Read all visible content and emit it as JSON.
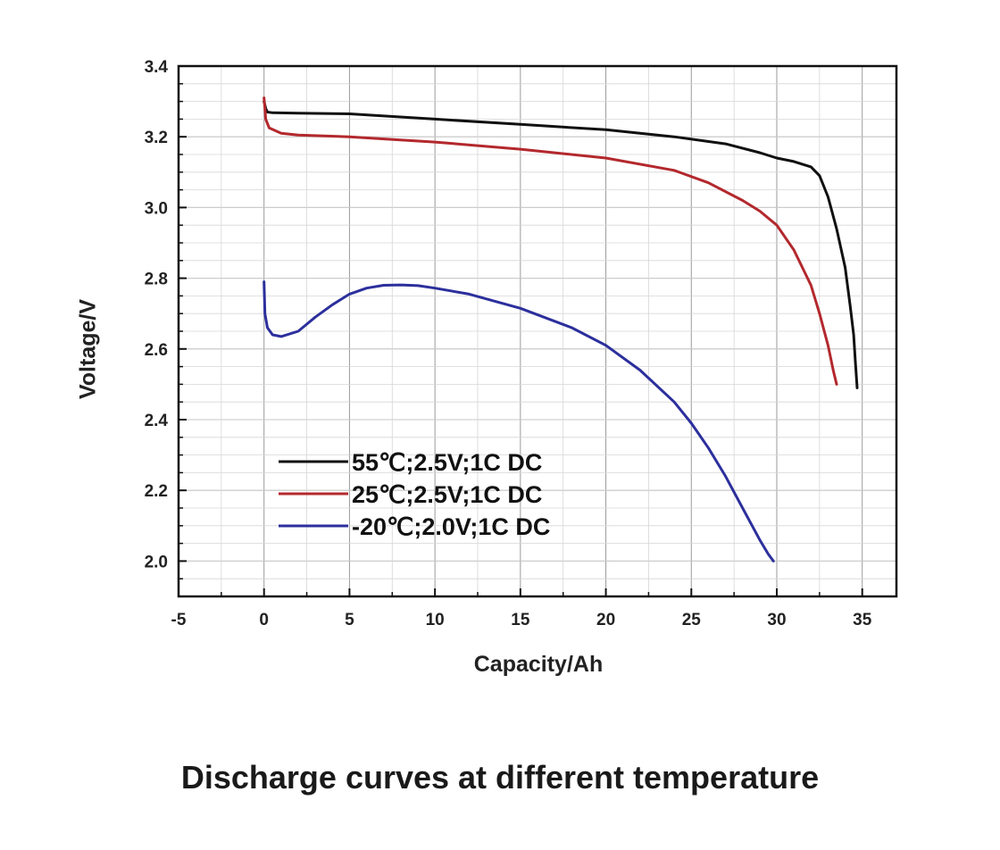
{
  "caption": "Discharge curves at different temperature",
  "chart_data": {
    "type": "line",
    "xlabel": "Capacity/Ah",
    "ylabel": "Voltage/V",
    "xlim": [
      -5,
      37
    ],
    "ylim": [
      1.9,
      3.4
    ],
    "x_ticks": [
      "-5",
      "0",
      "5",
      "10",
      "15",
      "20",
      "25",
      "30",
      "35"
    ],
    "y_ticks": [
      "2.0",
      "2.2",
      "2.4",
      "2.6",
      "2.8",
      "3.0",
      "3.2",
      "3.4"
    ],
    "grid": true,
    "legend_position": "center-left",
    "series": [
      {
        "name": "55℃;2.5V;1C DC",
        "color": "#111111",
        "x": [
          0,
          0.05,
          0.1,
          0.2,
          0.5,
          2,
          5,
          10,
          15,
          20,
          24,
          27,
          29,
          30,
          31,
          32,
          32.5,
          33,
          33.5,
          34,
          34.3,
          34.5,
          34.6,
          34.7
        ],
        "y": [
          3.3,
          3.29,
          3.28,
          3.27,
          3.268,
          3.267,
          3.265,
          3.25,
          3.235,
          3.22,
          3.2,
          3.18,
          3.155,
          3.14,
          3.13,
          3.115,
          3.09,
          3.03,
          2.94,
          2.83,
          2.72,
          2.64,
          2.56,
          2.49
        ]
      },
      {
        "name": "25℃;2.5V;1C DC",
        "color": "#b3282d",
        "x": [
          0,
          0.05,
          0.1,
          0.3,
          1,
          2,
          5,
          10,
          15,
          20,
          24,
          26,
          28,
          29,
          30,
          31,
          32,
          32.5,
          33,
          33.3,
          33.5
        ],
        "y": [
          3.31,
          3.28,
          3.25,
          3.225,
          3.21,
          3.205,
          3.2,
          3.185,
          3.165,
          3.14,
          3.105,
          3.07,
          3.02,
          2.99,
          2.95,
          2.88,
          2.78,
          2.7,
          2.61,
          2.54,
          2.5
        ]
      },
      {
        "name": "-20℃;2.0V;1C DC",
        "color": "#2c2f9c",
        "x": [
          0,
          0.05,
          0.2,
          0.5,
          1,
          2,
          3,
          4,
          5,
          6,
          7,
          8,
          9,
          10,
          12,
          15,
          18,
          20,
          22,
          24,
          25,
          26,
          27,
          28,
          29,
          29.5,
          29.8
        ],
        "y": [
          2.79,
          2.7,
          2.66,
          2.64,
          2.635,
          2.65,
          2.69,
          2.725,
          2.755,
          2.772,
          2.78,
          2.781,
          2.779,
          2.772,
          2.755,
          2.715,
          2.66,
          2.61,
          2.54,
          2.45,
          2.39,
          2.32,
          2.24,
          2.15,
          2.06,
          2.02,
          2.0
        ]
      }
    ]
  }
}
